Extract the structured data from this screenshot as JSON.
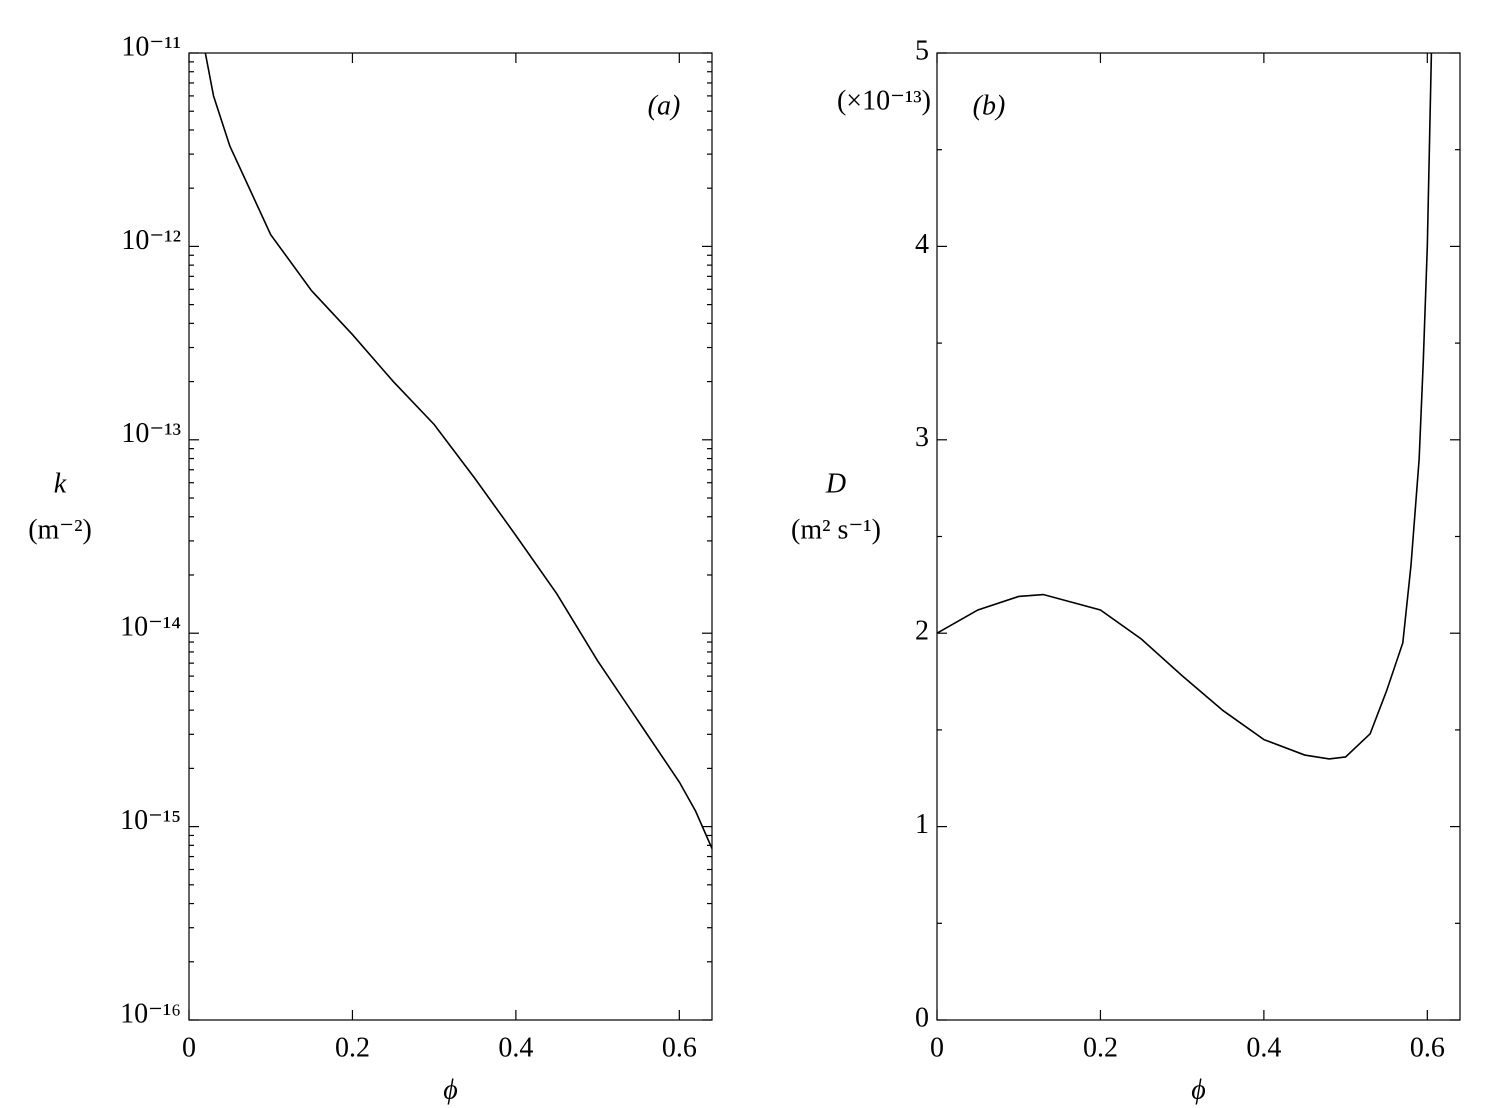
{
  "chart_data": [
    {
      "type": "line",
      "panel_label": "(a)",
      "xlabel": "ϕ",
      "ylabel": "k",
      "ylabel_unit": "(m⁻²)",
      "log_y": true,
      "color": "#000000",
      "xlim": [
        0,
        0.64
      ],
      "xticks": [
        0,
        0.2,
        0.4,
        0.6
      ],
      "ylim": [
        1e-16,
        1e-11
      ],
      "yticks": [
        {
          "value": 1e-16,
          "label": "10⁻¹⁶"
        },
        {
          "value": 1e-15,
          "label": "10⁻¹⁵"
        },
        {
          "value": 1e-14,
          "label": "10⁻¹⁴"
        },
        {
          "value": 1e-13,
          "label": "10⁻¹³"
        },
        {
          "value": 1e-12,
          "label": "10⁻¹²"
        },
        {
          "value": 1e-11,
          "label": "10⁻¹¹"
        }
      ],
      "x": [
        0.02,
        0.03,
        0.05,
        0.1,
        0.15,
        0.2,
        0.25,
        0.3,
        0.35,
        0.4,
        0.45,
        0.5,
        0.55,
        0.6,
        0.62,
        0.64
      ],
      "values": [
        1e-11,
        6e-12,
        3.3e-12,
        1.15e-12,
        5.9e-13,
        3.5e-13,
        2e-13,
        1.2e-13,
        6.3e-14,
        3.2e-14,
        1.6e-14,
        7.2e-15,
        3.5e-15,
        1.7e-15,
        1.2e-15,
        7.7e-16
      ]
    },
    {
      "type": "line",
      "panel_label": "(b)",
      "xlabel": "ϕ",
      "ylabel": "D",
      "ylabel_unit": "(m² s⁻¹)",
      "ylabel_scale": "(×10⁻¹³)",
      "log_y": false,
      "color": "#000000",
      "xlim": [
        0,
        0.64
      ],
      "xticks": [
        0,
        0.2,
        0.4,
        0.6
      ],
      "ylim": [
        0,
        5
      ],
      "yticks": [
        0,
        1,
        2,
        3,
        4,
        5
      ],
      "x": [
        0,
        0.05,
        0.1,
        0.13,
        0.2,
        0.25,
        0.3,
        0.35,
        0.4,
        0.45,
        0.48,
        0.5,
        0.53,
        0.55,
        0.57,
        0.58,
        0.59,
        0.595,
        0.6,
        0.605
      ],
      "values": [
        2.0,
        2.12,
        2.19,
        2.2,
        2.12,
        1.97,
        1.78,
        1.6,
        1.45,
        1.37,
        1.35,
        1.36,
        1.48,
        1.7,
        1.95,
        2.35,
        2.9,
        3.4,
        4.0,
        5.0
      ]
    }
  ]
}
